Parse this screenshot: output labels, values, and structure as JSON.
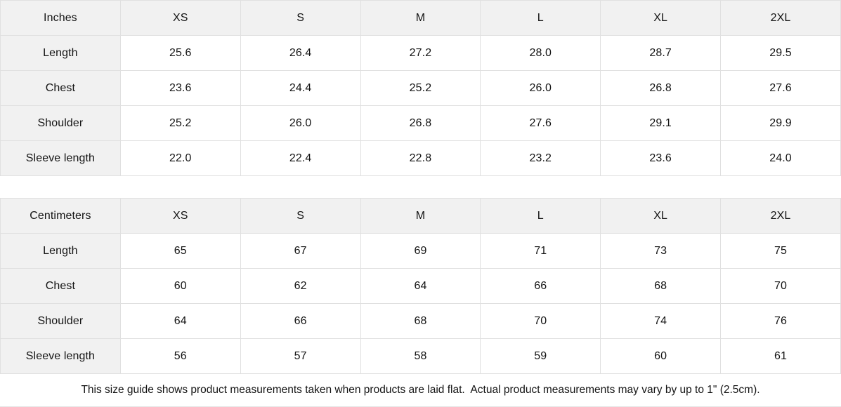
{
  "colors": {
    "header_bg": "#f1f1f1",
    "cell_bg": "#ffffff",
    "border": "#e0e0e0",
    "text": "#141414"
  },
  "tables": [
    {
      "unit_label": "Inches",
      "size_headers": [
        "XS",
        "S",
        "M",
        "L",
        "XL",
        "2XL"
      ],
      "rows": [
        {
          "label": "Length",
          "values": [
            "25.6",
            "26.4",
            "27.2",
            "28.0",
            "28.7",
            "29.5"
          ]
        },
        {
          "label": "Chest",
          "values": [
            "23.6",
            "24.4",
            "25.2",
            "26.0",
            "26.8",
            "27.6"
          ]
        },
        {
          "label": "Shoulder",
          "values": [
            "25.2",
            "26.0",
            "26.8",
            "27.6",
            "29.1",
            "29.9"
          ]
        },
        {
          "label": "Sleeve length",
          "values": [
            "22.0",
            "22.4",
            "22.8",
            "23.2",
            "23.6",
            "24.0"
          ]
        }
      ]
    },
    {
      "unit_label": "Centimeters",
      "size_headers": [
        "XS",
        "S",
        "M",
        "L",
        "XL",
        "2XL"
      ],
      "rows": [
        {
          "label": "Length",
          "values": [
            "65",
            "67",
            "69",
            "71",
            "73",
            "75"
          ]
        },
        {
          "label": "Chest",
          "values": [
            "60",
            "62",
            "64",
            "66",
            "68",
            "70"
          ]
        },
        {
          "label": "Shoulder",
          "values": [
            "64",
            "66",
            "68",
            "70",
            "74",
            "76"
          ]
        },
        {
          "label": "Sleeve length",
          "values": [
            "56",
            "57",
            "58",
            "59",
            "60",
            "61"
          ]
        }
      ]
    }
  ],
  "footer_note": "This size guide shows product measurements taken when products are laid flat.  Actual product measurements may vary by up to 1\" (2.5cm)."
}
